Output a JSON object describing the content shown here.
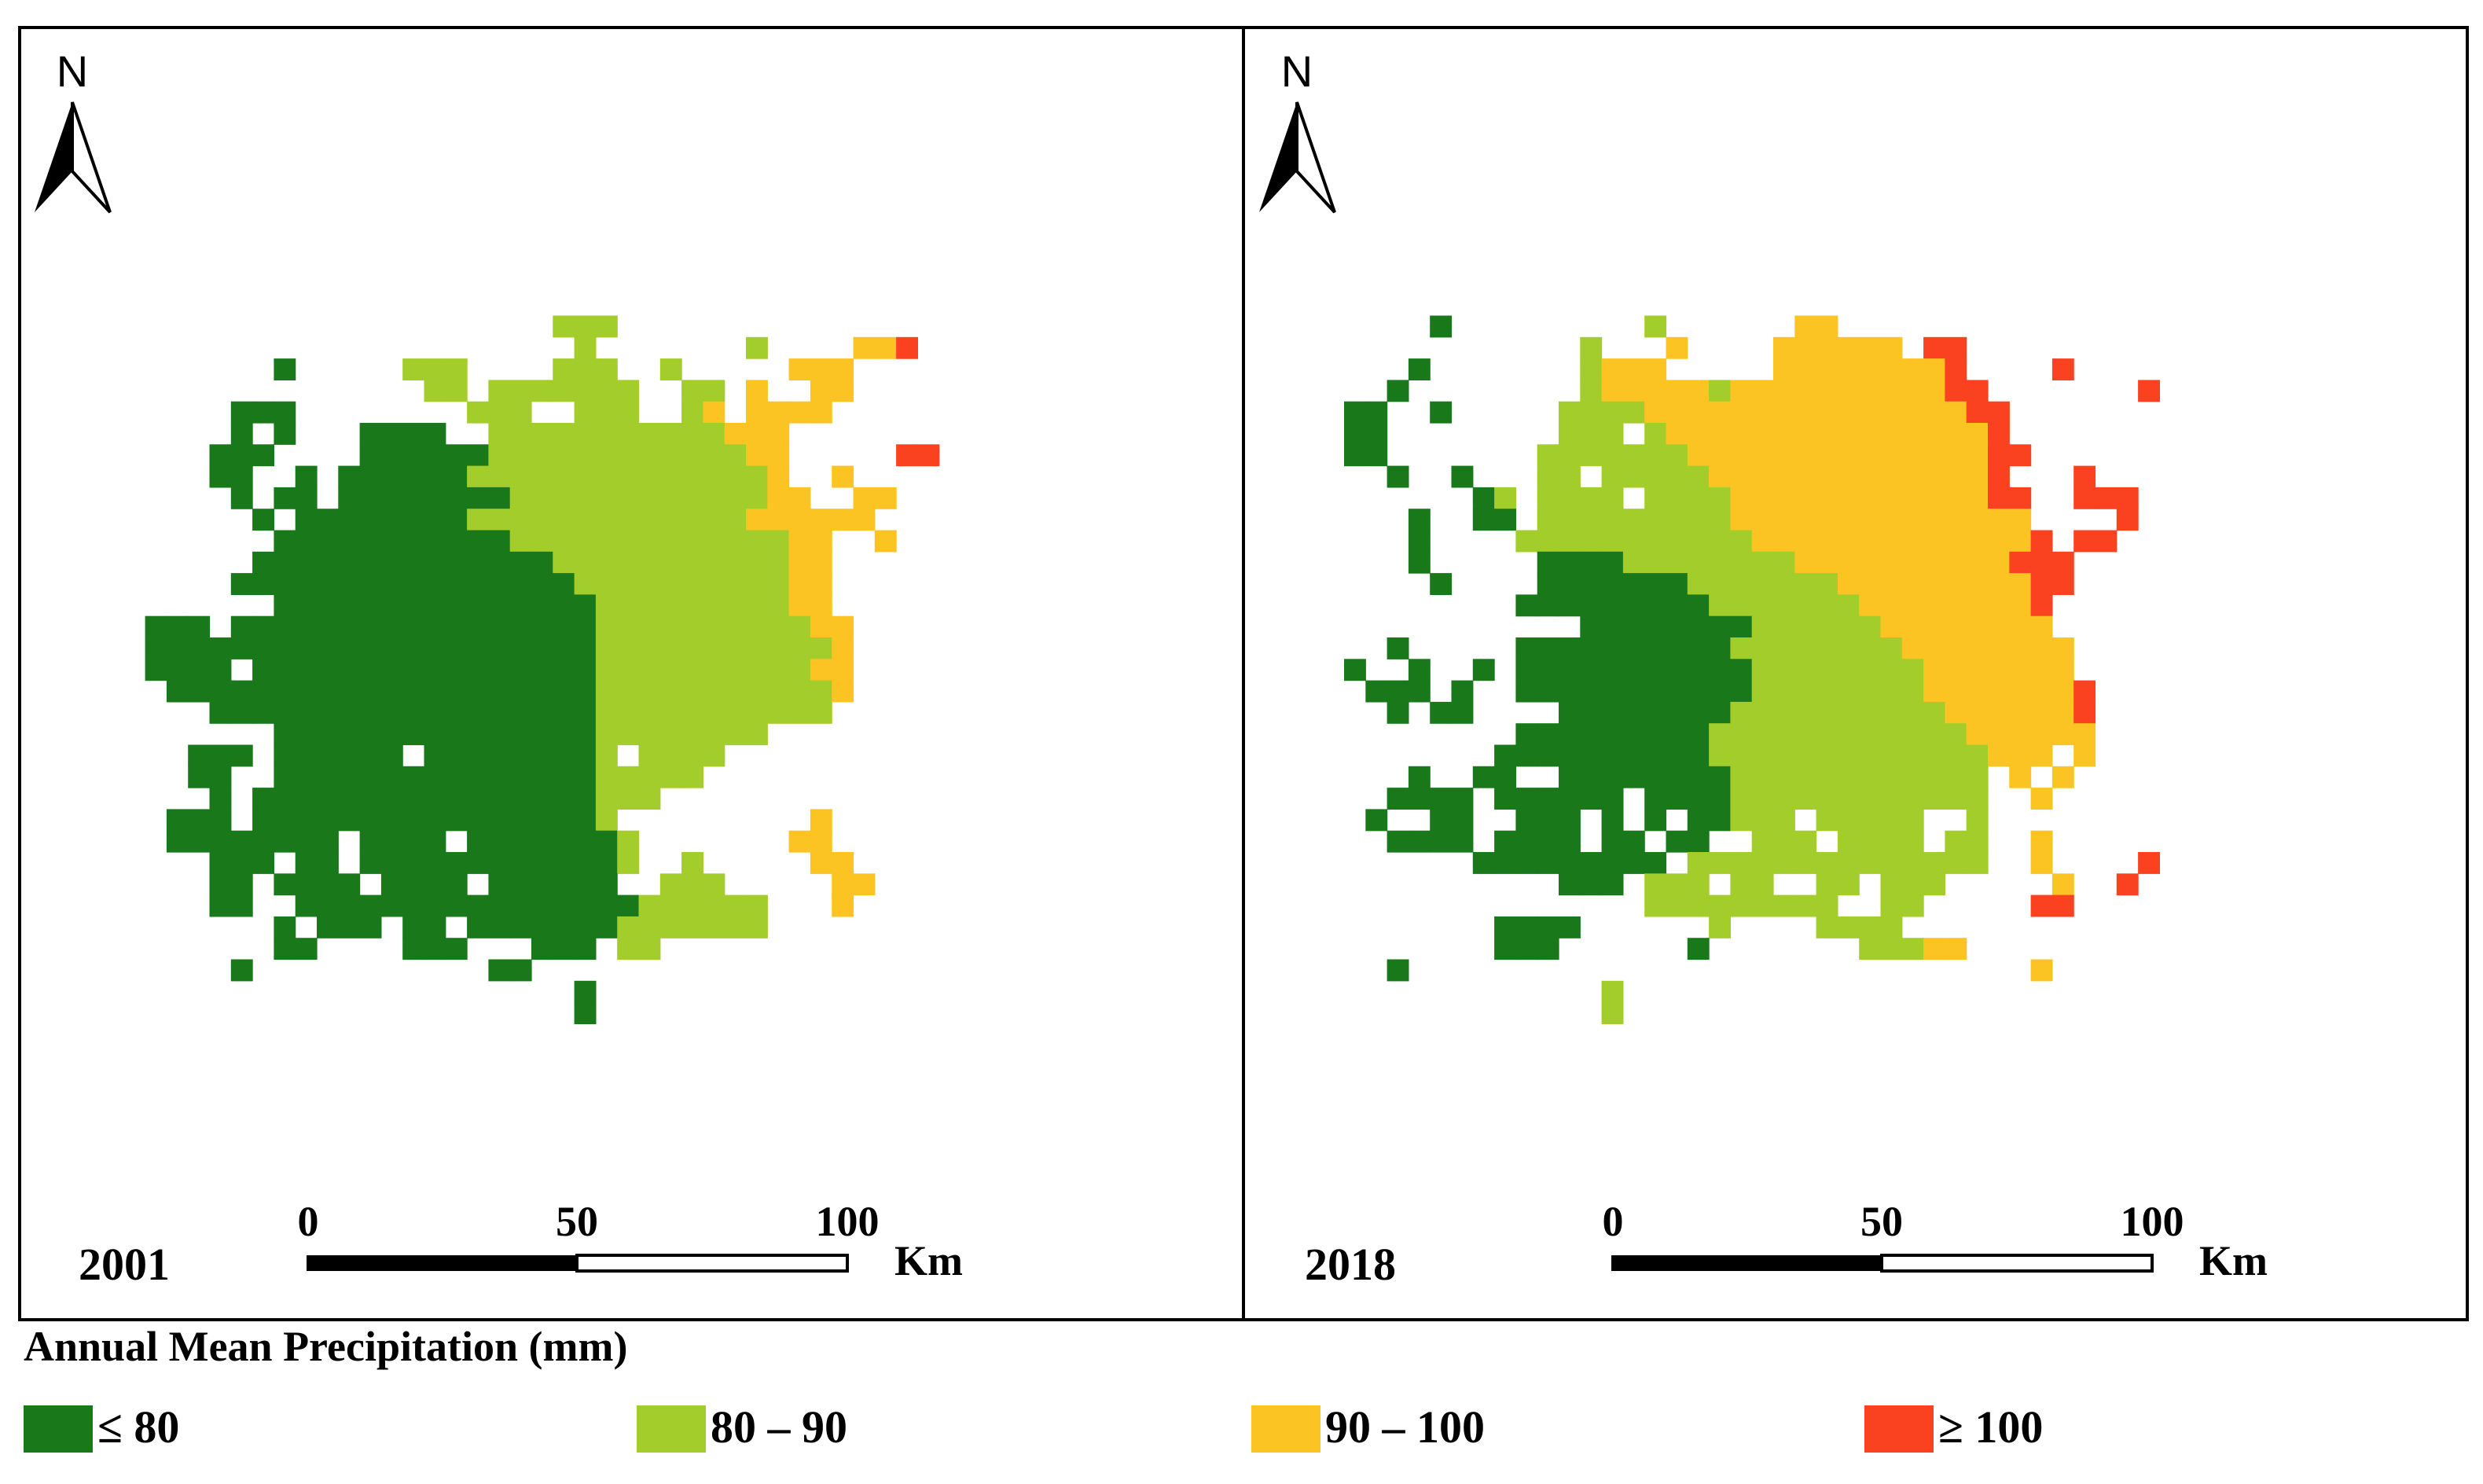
{
  "colors": {
    "class_le80": "#197819",
    "class_80_90": "#a3cd2a",
    "class_90_100": "#fbc423",
    "class_ge100": "#fa4221",
    "frame": "#000000"
  },
  "panels": [
    {
      "year": "2001",
      "north_label": "N",
      "scale_ticks": [
        "0",
        "50",
        "100"
      ],
      "scale_unit": "Km",
      "grid": [
        "......................................",
        "......................................",
        "......................................",
        "......................................",
        "......................................",
        ".....................BBB..............",
        "......................B.......B....CCD",
        "........A.....BBB....BBB..B.....CCC....",
        "...............BB.BBBBBBB..BB.C..CC....",
        "......AAA........BBB..BBB..BC.CCCC.....",
        "......A.A...AAAA..BBBBBBBBBBBCCC.......",
        ".....AAA....AAAAAABBBBBBBBBBBBCC.....DD",
        ".....AA..A.AAAAAABBBBBBBBBBBBBBC..C....",
        "......A.AA.AAAAAAAABBBBBBBBBBBBCC..CC..",
        ".......A.AAAAAAAABBBBBBBBBBBBBCCCCCC...",
        "........AAAAAAAAAAABBBBBBBBBBBBBCC..C..",
        ".......AAAAAAAAAAAAAABBBBBBBBBBBCC.....",
        "......AAAAAAAAAAAAAAAABBBBBBBBBBCC.....",
        "........AAAAAAAAAAAAAAABBBBBBBBBCC.....",
        "..AAA.AAAAAAAAAAAAAAAAABBBBBBBBBBCC.....",
        "..AAAAAAAAAAAAAAAAAAAAABBBBBBBBBBBC.....",
        "..AAAA.AAAAAAAAAAAAAAAABBBBBBBBBBCC.....",
        "...AAAAAAAAAAAAAAAAAAAABBBBBBBBBBBC.....",
        ".....AAAAAAAAAAAAAAAAAABBBBBBBBBBB......",
        "........AAAAAAAAAAAAAAABBBBBBBB.........",
        "....AAA.AAAAAA.AAAAAAAAB.BBBB...........",
        "....AA..AAAAAAAAAAAAAAABBBBB............",
        ".....A.AAAAAAAAAAAAAAAABBB..............",
        "...AAA.AAAAAAAAAAAAAAAAB.........C......",
        "...AAAAAAAA.AAAA.AAAAAAAB.......CC......",
        ".....AAA.AA.AAAAAAAAAAAAB..B.....CC.....",
        ".....AA.AAAA.AAAA.AAAAAA..BBB.....CC....",
        ".....AA..AAAAAAAAAAAAAAAABBBBBB...C.....",
        "........A.AAA.AA.AAAAAAABBBBBBB.........",
        "........AA....AAA...AAA.BB..............",
        "......A...........AA....................",
        "......................A.................",
        "......................A.................",
        "......................................"
      ]
    },
    {
      "year": "2018",
      "north_label": "N",
      "scale_ticks": [
        "0",
        "50",
        "100"
      ],
      "scale_unit": "Km",
      "grid": [
        "......................................",
        "......................................",
        "......................................",
        "......................................",
        "......................................",
        "....A.........B......CC...............",
        "...........B...C....CCCCCC.DD.........",
        "...A.......BCCC.....CCCCCCCCD....D....",
        "..A........BCCCCCBCCCCCCCCCCDD.......D",
        "AA..A.....BBBBCCCCCCCCCCCCCCCDD.......",
        "AA........BBB.BCCCCCCCCCCCCCCCD.......",
        "AA.......BBBBBBBCCCCCCCCCCCCCCDD......",
        "..A..A...BB.BBBBBCCCCCCCCCCCCCD...D...",
        "......AB.BBBB.BBBBCCCCCCCCCCCCDD..DDD.",
        "...A..AA.BBBBBBBBBCCCCCCCCCCCCCC....D.",
        "...A....BBBBBBBBBBBCCCCCCCCCCCCCD.DD..",
        "...A.....AAAABBBBBBBBCCCCCCCCCCDDD....",
        "....A....AAAAAAABBBBBBBCCCCCCCCCDD....",
        "........AAAAAAAAABBBBBBBCCCCCCCCD.....",
        "...........AAAAAAAABBBBBBCCCCCCCC.....",
        "..A.....AAAAAAAAAABBBBBBBBCCCCCCCC....",
        "A..A..A.AAAAAAAAAAABBBBBBBBCCCCCCC....",
        ".AAA.A..AAAAAAAAAAABBBBBBBBCCCCCCCD...",
        "..A.AA....AAAAAAAABBBBBBBBBBCCCCCCD...",
        "........AAAAAAAAABBBBBBBBBBBBCCCCCC...",
        ".......AAAAAAAAAABBBBBBBBBBBBBCCC.C....",
        "...A..AA..AAAAAAAABBBBBBBBBBBB.C.C....",
        "..AAAA.AAAAAA.AAAABBBBBBBBBBBB..C.....",
        ".A..AA..AAA.A.A.AABBB.BBBBB..B.......",
        "..AAAA.AAAA.AA.AA..BBB.BBBB.BB..C.....",
        "......AAAAAAAAA.BBBBBBBBBBBBBB..C....D.",
        "..........AAA.BBB.BB..BB.BBB.....C..D..",
        "..............BBBBBBBBB..BB.....DD....",
        ".......AAAA......B....BBBB............",
        ".......AAA......A.......BBBCC.........",
        "..A.............................C.....",
        "............B.........................",
        "............B.........................",
        "......................................"
      ]
    }
  ],
  "legend": {
    "title": "Annual Mean Precipitation (mm)",
    "items": [
      {
        "label": "≤ 80",
        "color": "#197819"
      },
      {
        "label": "80 – 90",
        "color": "#a3cd2a"
      },
      {
        "label": "90 – 100",
        "color": "#fbc423"
      },
      {
        "label": "≥ 100",
        "color": "#fa4221"
      }
    ]
  }
}
